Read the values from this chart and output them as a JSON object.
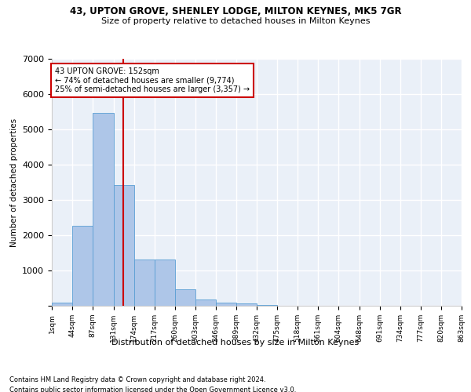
{
  "title1": "43, UPTON GROVE, SHENLEY LODGE, MILTON KEYNES, MK5 7GR",
  "title2": "Size of property relative to detached houses in Milton Keynes",
  "xlabel": "Distribution of detached houses by size in Milton Keynes",
  "ylabel": "Number of detached properties",
  "footnote1": "Contains HM Land Registry data © Crown copyright and database right 2024.",
  "footnote2": "Contains public sector information licensed under the Open Government Licence v3.0.",
  "bar_color": "#aec6e8",
  "bar_edge_color": "#5a9fd4",
  "background_color": "#eaf0f8",
  "grid_color": "#ffffff",
  "annotation_box_color": "#cc0000",
  "vline_color": "#cc0000",
  "property_size": 152,
  "property_label": "43 UPTON GROVE: 152sqm",
  "annotation_line1": "← 74% of detached houses are smaller (9,774)",
  "annotation_line2": "25% of semi-detached houses are larger (3,357) →",
  "bin_edges": [
    1,
    44,
    87,
    131,
    174,
    217,
    260,
    303,
    346,
    389,
    432,
    475,
    518,
    561,
    604,
    648,
    691,
    734,
    777,
    820,
    863
  ],
  "bin_counts": [
    80,
    2270,
    5460,
    3430,
    1310,
    1310,
    470,
    170,
    100,
    70,
    30,
    0,
    0,
    0,
    0,
    0,
    0,
    0,
    0,
    0
  ],
  "ylim": [
    0,
    7000
  ],
  "yticks": [
    0,
    1000,
    2000,
    3000,
    4000,
    5000,
    6000,
    7000
  ],
  "tick_labels": [
    "1sqm",
    "44sqm",
    "87sqm",
    "131sqm",
    "174sqm",
    "217sqm",
    "260sqm",
    "303sqm",
    "346sqm",
    "389sqm",
    "432sqm",
    "475sqm",
    "518sqm",
    "561sqm",
    "604sqm",
    "648sqm",
    "691sqm",
    "734sqm",
    "777sqm",
    "820sqm",
    "863sqm"
  ]
}
